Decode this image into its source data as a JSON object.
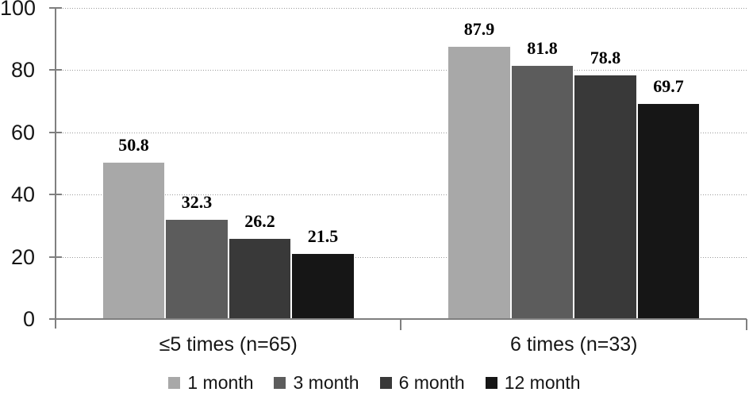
{
  "chart_data": {
    "type": "bar",
    "title": "",
    "categories": [
      "≤5 times (n=65)",
      "6 times (n=33)"
    ],
    "series": [
      {
        "name": "1 month",
        "color": "#a8a8a8",
        "values": [
          50.8,
          87.9
        ]
      },
      {
        "name": "3 month",
        "color": "#5c5c5c",
        "values": [
          32.3,
          81.8
        ]
      },
      {
        "name": "6 month",
        "color": "#393939",
        "values": [
          26.2,
          78.8
        ]
      },
      {
        "name": "12 month",
        "color": "#161616",
        "values": [
          21.5,
          69.7
        ]
      }
    ],
    "value_labels": {
      "shown": true,
      "values": [
        [
          "50.8",
          "32.3",
          "26.2",
          "21.5"
        ],
        [
          "87.9",
          "81.8",
          "78.8",
          "69.7"
        ]
      ]
    },
    "xlabel": "",
    "ylabel": "",
    "ylim": [
      0,
      100
    ],
    "yticks": [
      0,
      20,
      40,
      60,
      80,
      100
    ],
    "grid": "horizontal-dotted",
    "legend_position": "bottom"
  },
  "colors": {
    "axis": "#7f7f7f",
    "grid": "#9a9a9a",
    "text": "#161616",
    "value_label": "#000000",
    "background": "#ffffff"
  }
}
